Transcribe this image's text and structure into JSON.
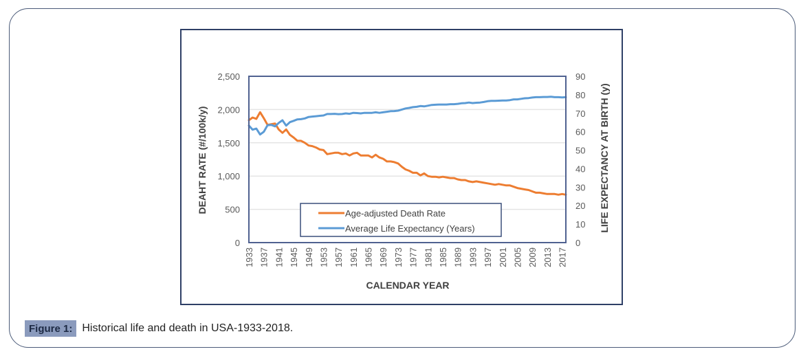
{
  "caption": {
    "label": "Figure 1:",
    "text": "Historical life and death in USA-1933-2018."
  },
  "chart_data": {
    "type": "line",
    "title": "",
    "xlabel": "CALENDAR YEAR",
    "ylabel": "DEAHT RATE (#/100k/y)",
    "y2label": "LIFE EXPECTANCY AT BIRTH (y)",
    "ylim": [
      0,
      2500
    ],
    "y2lim": [
      0,
      90
    ],
    "yticks": [
      "0",
      "500",
      "1,000",
      "1,500",
      "2,000",
      "2,500"
    ],
    "y2ticks": [
      "0",
      "10",
      "20",
      "30",
      "40",
      "50",
      "60",
      "70",
      "80",
      "90"
    ],
    "xtick_labels": [
      "1933",
      "1937",
      "1941",
      "1945",
      "1949",
      "1953",
      "1957",
      "1961",
      "1965",
      "1969",
      "1973",
      "1977",
      "1981",
      "1985",
      "1989",
      "1993",
      "1997",
      "2001",
      "2005",
      "2009",
      "2013",
      "2017"
    ],
    "grid": true,
    "legend": "center-bottom",
    "x": [
      1933,
      1934,
      1935,
      1936,
      1937,
      1938,
      1939,
      1940,
      1941,
      1942,
      1943,
      1944,
      1945,
      1946,
      1947,
      1948,
      1949,
      1950,
      1951,
      1952,
      1953,
      1954,
      1955,
      1956,
      1957,
      1958,
      1959,
      1960,
      1961,
      1962,
      1963,
      1964,
      1965,
      1966,
      1967,
      1968,
      1969,
      1970,
      1971,
      1972,
      1973,
      1974,
      1975,
      1976,
      1977,
      1978,
      1979,
      1980,
      1981,
      1982,
      1983,
      1984,
      1985,
      1986,
      1987,
      1988,
      1989,
      1990,
      1991,
      1992,
      1993,
      1994,
      1995,
      1996,
      1997,
      1998,
      1999,
      2000,
      2001,
      2002,
      2003,
      2004,
      2005,
      2006,
      2007,
      2008,
      2009,
      2010,
      2011,
      2012,
      2013,
      2014,
      2015,
      2016,
      2017,
      2018
    ],
    "series": [
      {
        "name": "Age-adjusted Death Rate",
        "axis": "left",
        "color": "#ed7d31",
        "values": [
          1840,
          1880,
          1860,
          1960,
          1870,
          1770,
          1780,
          1790,
          1700,
          1650,
          1700,
          1620,
          1580,
          1530,
          1530,
          1500,
          1460,
          1450,
          1430,
          1400,
          1390,
          1330,
          1340,
          1350,
          1350,
          1330,
          1340,
          1310,
          1340,
          1350,
          1310,
          1310,
          1310,
          1280,
          1320,
          1280,
          1260,
          1220,
          1220,
          1210,
          1190,
          1140,
          1100,
          1080,
          1050,
          1050,
          1010,
          1040,
          1000,
          990,
          990,
          980,
          990,
          980,
          970,
          970,
          950,
          940,
          940,
          920,
          910,
          920,
          910,
          900,
          890,
          880,
          870,
          880,
          870,
          860,
          860,
          840,
          820,
          810,
          800,
          790,
          770,
          750,
          750,
          740,
          730,
          730,
          730,
          720,
          730,
          720
        ]
      },
      {
        "name": "Average Life Expectancy (Years)",
        "axis": "right",
        "color": "#5b9bd5",
        "values": [
          63.3,
          61.1,
          61.7,
          58.5,
          60.0,
          63.5,
          63.7,
          62.9,
          64.8,
          66.2,
          63.3,
          65.2,
          65.9,
          66.7,
          66.8,
          67.2,
          68.0,
          68.2,
          68.4,
          68.6,
          68.8,
          69.6,
          69.6,
          69.7,
          69.5,
          69.6,
          69.9,
          69.7,
          70.2,
          70.1,
          69.9,
          70.2,
          70.2,
          70.2,
          70.5,
          70.2,
          70.5,
          70.8,
          71.1,
          71.2,
          71.4,
          72.0,
          72.6,
          72.9,
          73.3,
          73.5,
          73.9,
          73.7,
          74.1,
          74.5,
          74.6,
          74.7,
          74.7,
          74.7,
          74.9,
          74.9,
          75.1,
          75.4,
          75.5,
          75.8,
          75.5,
          75.7,
          75.8,
          76.1,
          76.5,
          76.7,
          76.7,
          76.8,
          76.9,
          76.9,
          77.1,
          77.5,
          77.5,
          77.8,
          78.1,
          78.2,
          78.5,
          78.7,
          78.7,
          78.8,
          78.8,
          78.9,
          78.7,
          78.7,
          78.6,
          78.7
        ]
      }
    ]
  }
}
